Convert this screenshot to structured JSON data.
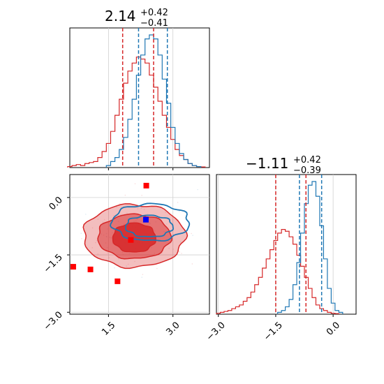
{
  "chart_data": {
    "type": "corner",
    "colors": {
      "red": "#d62728",
      "blue": "#1f77b4",
      "grid": "#d0d0d0",
      "marker_red": "#ff0000",
      "marker_blue": "#0000ff"
    },
    "param1": {
      "title_value": "2.14",
      "title_plus": "+0.42",
      "title_minus": "−0.41",
      "range": [
        0.6,
        3.85
      ],
      "ticks": [
        1.5,
        3.0
      ],
      "tick_labels": [
        "1.5",
        "3.0"
      ],
      "red_quantiles": [
        1.83,
        2.55
      ],
      "blue_quantiles": [
        2.2,
        2.87
      ],
      "hist_red": [
        [
          0.6,
          0.5
        ],
        [
          0.7,
          1
        ],
        [
          0.8,
          1.5
        ],
        [
          0.9,
          1
        ],
        [
          1.0,
          2
        ],
        [
          1.1,
          2.5
        ],
        [
          1.2,
          3
        ],
        [
          1.3,
          5
        ],
        [
          1.4,
          8
        ],
        [
          1.5,
          12
        ],
        [
          1.6,
          18
        ],
        [
          1.7,
          26
        ],
        [
          1.8,
          34
        ],
        [
          1.9,
          42
        ],
        [
          2.0,
          48
        ],
        [
          2.1,
          52
        ],
        [
          2.2,
          55
        ],
        [
          2.3,
          54
        ],
        [
          2.4,
          52
        ],
        [
          2.5,
          46
        ],
        [
          2.6,
          40
        ],
        [
          2.7,
          33
        ],
        [
          2.8,
          26
        ],
        [
          2.9,
          20
        ],
        [
          3.0,
          14
        ],
        [
          3.1,
          9
        ],
        [
          3.2,
          6
        ],
        [
          3.3,
          4
        ],
        [
          3.4,
          2
        ],
        [
          3.5,
          1
        ],
        [
          3.6,
          0.5
        ],
        [
          3.7,
          0.3
        ]
      ],
      "hist_blue": [
        [
          1.5,
          1
        ],
        [
          1.6,
          3
        ],
        [
          1.7,
          5
        ],
        [
          1.8,
          9
        ],
        [
          1.9,
          15
        ],
        [
          2.0,
          24
        ],
        [
          2.1,
          34
        ],
        [
          2.2,
          46
        ],
        [
          2.3,
          56
        ],
        [
          2.4,
          64
        ],
        [
          2.5,
          66
        ],
        [
          2.6,
          64
        ],
        [
          2.7,
          56
        ],
        [
          2.8,
          44
        ],
        [
          2.9,
          32
        ],
        [
          3.0,
          20
        ],
        [
          3.1,
          12
        ],
        [
          3.2,
          7
        ],
        [
          3.3,
          4
        ],
        [
          3.4,
          2
        ],
        [
          3.5,
          1
        ],
        [
          3.6,
          0.5
        ]
      ]
    },
    "param2": {
      "title_value": "−1.11",
      "title_plus": "+0.42",
      "title_minus": "−0.39",
      "range": [
        -3.05,
        0.6
      ],
      "ticks": [
        -3.0,
        -1.5,
        0.0
      ],
      "tick_labels": [
        "−3.0",
        "−1.5",
        "0.0"
      ],
      "red_quantiles": [
        -1.5,
        -0.71
      ],
      "blue_quantiles": [
        -0.88,
        -0.3
      ],
      "hist_red": [
        [
          -3.0,
          0.5
        ],
        [
          -2.9,
          1
        ],
        [
          -2.8,
          1.5
        ],
        [
          -2.7,
          2
        ],
        [
          -2.6,
          3
        ],
        [
          -2.5,
          4
        ],
        [
          -2.4,
          5
        ],
        [
          -2.3,
          7
        ],
        [
          -2.2,
          9
        ],
        [
          -2.1,
          12
        ],
        [
          -2.0,
          16
        ],
        [
          -1.9,
          20
        ],
        [
          -1.8,
          25
        ],
        [
          -1.7,
          30
        ],
        [
          -1.6,
          35
        ],
        [
          -1.5,
          40
        ],
        [
          -1.4,
          44
        ],
        [
          -1.3,
          46
        ],
        [
          -1.2,
          45
        ],
        [
          -1.1,
          42
        ],
        [
          -1.0,
          38
        ],
        [
          -0.9,
          32
        ],
        [
          -0.8,
          26
        ],
        [
          -0.7,
          20
        ],
        [
          -0.6,
          14
        ],
        [
          -0.5,
          9
        ],
        [
          -0.4,
          5
        ],
        [
          -0.3,
          3
        ],
        [
          -0.2,
          2
        ],
        [
          -0.1,
          1
        ],
        [
          0.0,
          0.5
        ],
        [
          0.1,
          0.3
        ]
      ],
      "hist_blue": [
        [
          -1.4,
          1
        ],
        [
          -1.3,
          2
        ],
        [
          -1.2,
          4
        ],
        [
          -1.1,
          8
        ],
        [
          -1.0,
          16
        ],
        [
          -0.9,
          28
        ],
        [
          -0.8,
          44
        ],
        [
          -0.7,
          60
        ],
        [
          -0.6,
          70
        ],
        [
          -0.5,
          72
        ],
        [
          -0.4,
          64
        ],
        [
          -0.3,
          48
        ],
        [
          -0.2,
          30
        ],
        [
          -0.1,
          14
        ],
        [
          0.0,
          6
        ],
        [
          0.1,
          2
        ],
        [
          0.2,
          1
        ]
      ]
    },
    "scatter_red_markers": [
      [
        2.38,
        0.31
      ],
      [
        0.68,
        -1.81
      ],
      [
        1.08,
        -1.88
      ],
      [
        1.71,
        -2.19
      ],
      [
        2.02,
        -1.11
      ]
    ],
    "scatter_blue_marker": [
      2.37,
      -0.58
    ],
    "contours_red": [
      {
        "cx": 2.1,
        "cy": -1.05,
        "rx": 0.5,
        "ry": 0.38,
        "fill_opacity": 0.85
      },
      {
        "cx": 2.1,
        "cy": -1.02,
        "rx": 0.85,
        "ry": 0.58,
        "fill_opacity": 0.5
      },
      {
        "cx": 2.1,
        "cy": -1.0,
        "rx": 1.18,
        "ry": 0.82,
        "fill_opacity": 0.3
      }
    ],
    "contours_blue": [
      {
        "cx": 2.45,
        "cy": -0.75,
        "rx": 0.55,
        "ry": 0.28
      },
      {
        "cx": 2.48,
        "cy": -0.65,
        "rx": 0.9,
        "ry": 0.48
      }
    ],
    "grid": true
  }
}
